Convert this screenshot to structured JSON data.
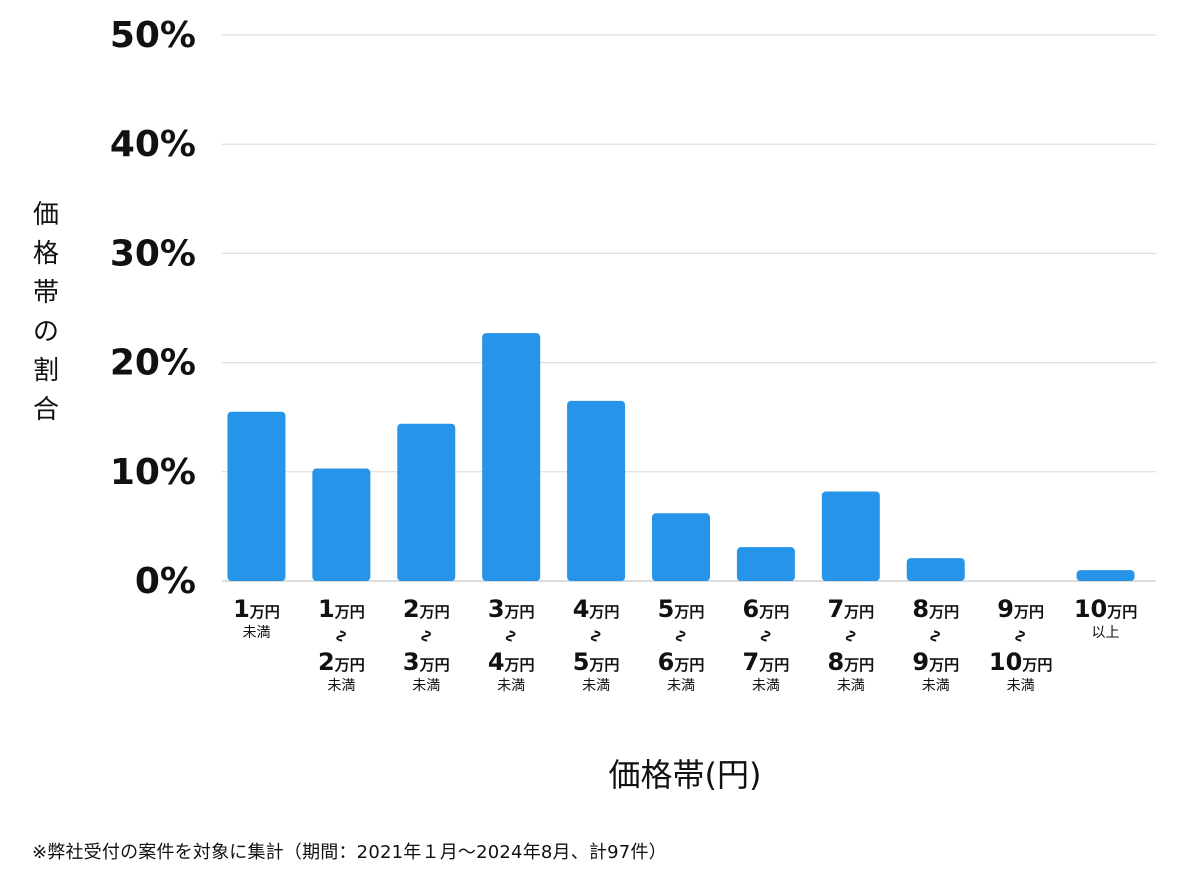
{
  "chart_data": {
    "type": "bar",
    "title": "",
    "ylabel": "価格帯の割合",
    "xlabel": "価格帯(円)",
    "ylim": [
      0,
      50
    ],
    "y_ticks": [
      "0%",
      "10%",
      "20%",
      "30%",
      "40%",
      "50%"
    ],
    "y_tick_values": [
      0,
      10,
      20,
      30,
      40,
      50
    ],
    "grid": true,
    "unit": "%",
    "bar_color": "#2694e8",
    "categories": [
      {
        "top_num": "1",
        "top_unit": "万円",
        "has_tilde": false,
        "bottom_num": "",
        "bottom_unit": "",
        "note": "未満"
      },
      {
        "top_num": "1",
        "top_unit": "万円",
        "has_tilde": true,
        "bottom_num": "2",
        "bottom_unit": "万円",
        "note": "未満"
      },
      {
        "top_num": "2",
        "top_unit": "万円",
        "has_tilde": true,
        "bottom_num": "3",
        "bottom_unit": "万円",
        "note": "未満"
      },
      {
        "top_num": "3",
        "top_unit": "万円",
        "has_tilde": true,
        "bottom_num": "4",
        "bottom_unit": "万円",
        "note": "未満"
      },
      {
        "top_num": "4",
        "top_unit": "万円",
        "has_tilde": true,
        "bottom_num": "5",
        "bottom_unit": "万円",
        "note": "未満"
      },
      {
        "top_num": "5",
        "top_unit": "万円",
        "has_tilde": true,
        "bottom_num": "6",
        "bottom_unit": "万円",
        "note": "未満"
      },
      {
        "top_num": "6",
        "top_unit": "万円",
        "has_tilde": true,
        "bottom_num": "7",
        "bottom_unit": "万円",
        "note": "未満"
      },
      {
        "top_num": "7",
        "top_unit": "万円",
        "has_tilde": true,
        "bottom_num": "8",
        "bottom_unit": "万円",
        "note": "未満"
      },
      {
        "top_num": "8",
        "top_unit": "万円",
        "has_tilde": true,
        "bottom_num": "9",
        "bottom_unit": "万円",
        "note": "未満"
      },
      {
        "top_num": "9",
        "top_unit": "万円",
        "has_tilde": true,
        "bottom_num": "10",
        "bottom_unit": "万円",
        "note": "未満"
      },
      {
        "top_num": "10",
        "top_unit": "万円",
        "has_tilde": false,
        "bottom_num": "",
        "bottom_unit": "",
        "note": "以上"
      }
    ],
    "values": [
      15.5,
      10.3,
      14.4,
      22.7,
      16.5,
      6.2,
      3.1,
      8.2,
      2.1,
      0,
      1.0
    ]
  },
  "footnote": "※弊社受付の案件を対象に集計（期間：2021年１月〜2024年8月、計97件）"
}
